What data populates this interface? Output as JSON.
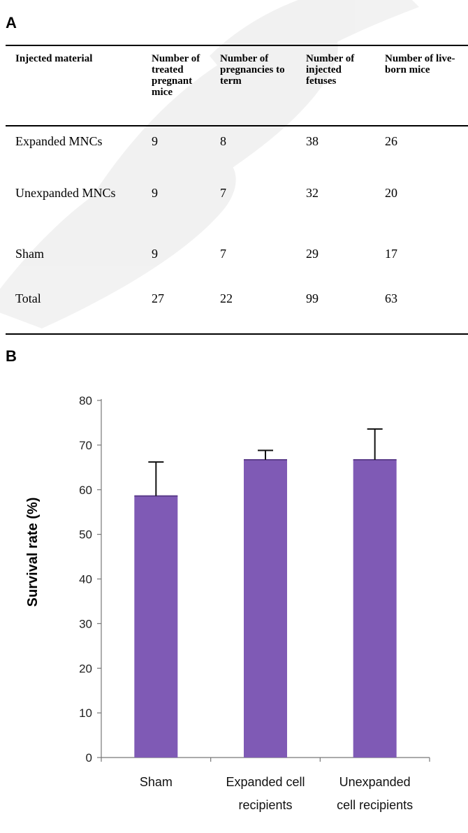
{
  "panel_a_label": "A",
  "panel_b_label": "B",
  "table": {
    "headers": [
      "Injected material",
      "Number of treated pregnant mice",
      "Number of pregnancies to term",
      "Number of injected fetuses",
      "Number of live-born mice"
    ],
    "rows": [
      [
        "Expanded MNCs",
        "9",
        "8",
        "38",
        "26"
      ],
      [
        "Unexpanded MNCs",
        "9",
        "7",
        "32",
        "20"
      ],
      [
        "Sham",
        "9",
        "7",
        "29",
        "17"
      ],
      [
        "Total",
        "27",
        "22",
        "99",
        "63"
      ]
    ]
  },
  "chart_data": {
    "type": "bar",
    "categories": [
      "Sham",
      "Expanded cell recipients",
      "Unexpanded cell recipients"
    ],
    "category_lines": [
      [
        "Sham"
      ],
      [
        "Expanded cell",
        "recipients"
      ],
      [
        "Unexpanded",
        "cell recipients"
      ]
    ],
    "values": [
      58.6,
      66.7,
      66.7
    ],
    "errors": [
      7.6,
      2.1,
      6.9
    ],
    "ylabel": "Survival rate (%)",
    "xlabel": "",
    "ylim": [
      0,
      80
    ],
    "yticks": [
      0,
      10,
      20,
      30,
      40,
      50,
      60,
      70,
      80
    ],
    "bar_color": "#7f5ab5",
    "grid": false,
    "legend": "none"
  }
}
